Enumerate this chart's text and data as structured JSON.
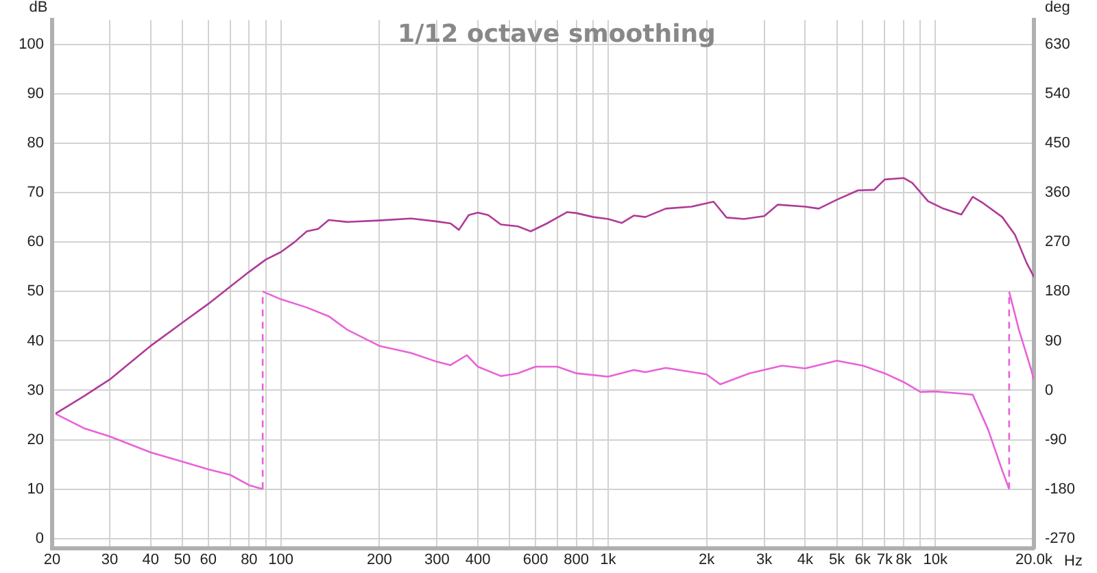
{
  "chart_data": {
    "type": "line",
    "title": "1/12 octave smoothing",
    "xlabel": "Hz",
    "ylabel": "dB",
    "y2label": "deg",
    "log": "x",
    "grid": true,
    "legend": false,
    "marker": "none",
    "line_style": "solid",
    "xlim": [
      20,
      20000
    ],
    "xticks": [
      20,
      30,
      40,
      50,
      60,
      {
        "value": 70,
        "label": null
      },
      80,
      {
        "value": 90,
        "label": null
      },
      100,
      200,
      300,
      400,
      {
        "value": 500,
        "label": null
      },
      600,
      {
        "value": 700,
        "label": null
      },
      800,
      {
        "value": 900,
        "label": null
      },
      {
        "value": 1000,
        "label": "1k"
      },
      {
        "value": 2000,
        "label": "2k"
      },
      {
        "value": 3000,
        "label": "3k"
      },
      {
        "value": 4000,
        "label": "4k"
      },
      {
        "value": 5000,
        "label": "5k"
      },
      {
        "value": 6000,
        "label": "6k"
      },
      {
        "value": 7000,
        "label": "7k"
      },
      {
        "value": 8000,
        "label": "8k"
      },
      {
        "value": 9000,
        "label": null
      },
      {
        "value": 10000,
        "label": "10k"
      },
      {
        "value": 20000,
        "label": "20.0k"
      }
    ],
    "ylim": [
      -2,
      105
    ],
    "yticks": [
      0,
      10,
      20,
      30,
      40,
      50,
      60,
      70,
      80,
      90,
      100
    ],
    "y2lim": [
      -288,
      675
    ],
    "y2ticks": [
      -270,
      -180,
      -90,
      0,
      90,
      180,
      270,
      360,
      450,
      540,
      630
    ],
    "series": [
      {
        "color": "#b03a98",
        "x": [
          20.5,
          25,
          30,
          40,
          50,
          60,
          70,
          80,
          90,
          100,
          110,
          120,
          130,
          140,
          160,
          200,
          250,
          300,
          330,
          350,
          375,
          400,
          430,
          470,
          530,
          580,
          650,
          700,
          750,
          800,
          900,
          1000,
          1100,
          1200,
          1300,
          1500,
          1800,
          2000,
          2100,
          2300,
          2600,
          3000,
          3300,
          4000,
          4400,
          5000,
          5800,
          6500,
          7000,
          8000,
          8500,
          9500,
          10500,
          12000,
          13000,
          14000,
          16000,
          17500,
          19000,
          20000
        ],
        "values": [
          25.3,
          28.8,
          32.2,
          39,
          43.7,
          47.5,
          51,
          54,
          56.5,
          58,
          60,
          62.2,
          62.7,
          64.5,
          64.1,
          64.4,
          64.8,
          64.2,
          63.8,
          62.5,
          65.5,
          66,
          65.5,
          63.6,
          63.2,
          62.2,
          63.8,
          65,
          66.1,
          65.9,
          65.1,
          64.7,
          63.9,
          65.4,
          65.1,
          66.8,
          67.2,
          67.9,
          68.2,
          65,
          64.7,
          65.3,
          67.6,
          67.2,
          66.8,
          68.6,
          70.5,
          70.6,
          72.7,
          73,
          72,
          68.3,
          66.9,
          65.6,
          69.2,
          67.9,
          65.1,
          61.5,
          55.8,
          53
        ]
      },
      {
        "color": "#e862d8",
        "axis": "y2",
        "x": [
          20.5,
          25,
          30,
          40,
          50,
          60,
          70,
          80,
          88,
          88,
          100,
          120,
          140,
          160,
          200,
          250,
          300,
          330,
          370,
          400,
          470,
          530,
          600,
          700,
          800,
          1000,
          1200,
          1300,
          1500,
          2000,
          2200,
          2700,
          3400,
          4000,
          5000,
          6000,
          7000,
          8000,
          9000,
          10000,
          12000,
          13000,
          14500,
          16000,
          16800,
          16800,
          18000,
          19500,
          20000
        ],
        "values": [
          -43,
          -69,
          -84,
          -113,
          -130,
          -144,
          -154,
          -173,
          -180,
          180,
          166,
          151,
          135,
          110,
          81,
          68,
          52,
          46,
          64,
          43,
          26,
          31,
          43,
          43,
          31,
          25,
          37,
          33,
          41,
          29,
          11,
          31,
          45,
          40,
          54,
          45,
          31,
          15,
          -3,
          -2,
          -6,
          -8,
          -72,
          -146,
          -180,
          180,
          110,
          43,
          19
        ]
      }
    ]
  }
}
